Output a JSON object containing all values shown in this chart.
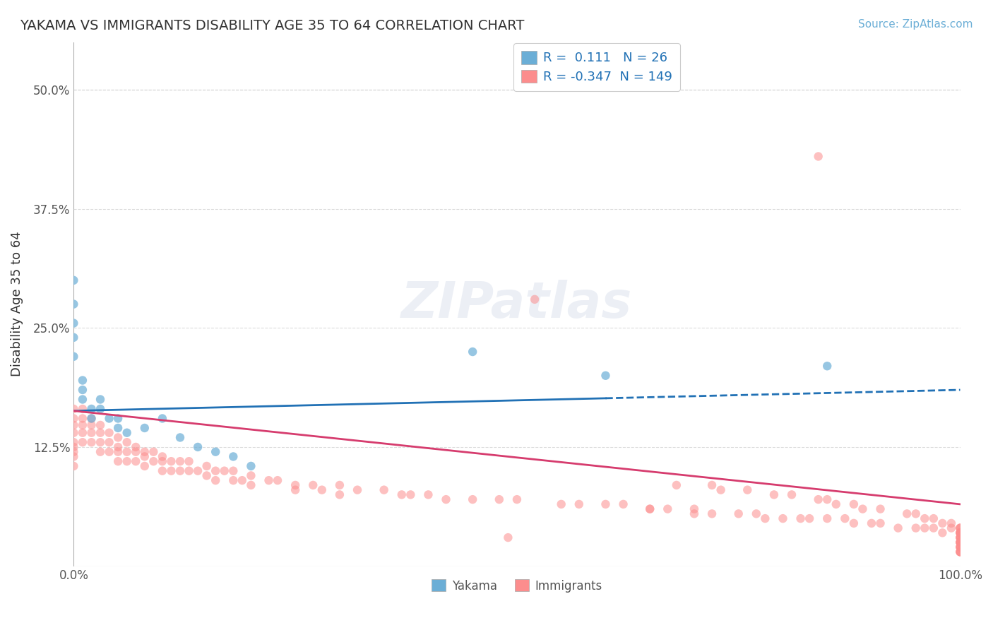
{
  "title": "YAKAMA VS IMMIGRANTS DISABILITY AGE 35 TO 64 CORRELATION CHART",
  "source_text": "Source: ZipAtlas.com",
  "xlabel": "",
  "ylabel": "Disability Age 35 to 64",
  "xlim": [
    0.0,
    1.0
  ],
  "ylim": [
    0.0,
    0.55
  ],
  "x_tick_labels": [
    "0.0%",
    "100.0%"
  ],
  "y_tick_labels": [
    "12.5%",
    "25.0%",
    "37.5%",
    "50.0%"
  ],
  "y_tick_values": [
    0.125,
    0.25,
    0.375,
    0.5
  ],
  "background_color": "#ffffff",
  "watermark_text": "ZIPatlas",
  "legend": {
    "yakama_color": "#6baed6",
    "immigrants_color": "#fc8d8d",
    "yakama_R": "0.111",
    "yakama_N": "26",
    "immigrants_R": "-0.347",
    "immigrants_N": "149"
  },
  "yakama_scatter": {
    "color": "#6baed6",
    "alpha": 0.7,
    "size": 80,
    "x": [
      0.0,
      0.0,
      0.0,
      0.0,
      0.0,
      0.01,
      0.01,
      0.01,
      0.02,
      0.02,
      0.03,
      0.03,
      0.04,
      0.05,
      0.05,
      0.06,
      0.08,
      0.1,
      0.12,
      0.14,
      0.16,
      0.18,
      0.2,
      0.45,
      0.6,
      0.85
    ],
    "y": [
      0.3,
      0.275,
      0.255,
      0.24,
      0.22,
      0.195,
      0.185,
      0.175,
      0.165,
      0.155,
      0.175,
      0.165,
      0.155,
      0.155,
      0.145,
      0.14,
      0.145,
      0.155,
      0.135,
      0.125,
      0.12,
      0.115,
      0.105,
      0.225,
      0.2,
      0.21
    ]
  },
  "immigrants_scatter": {
    "color": "#fc8d8d",
    "alpha": 0.55,
    "size": 80,
    "x": [
      0.0,
      0.0,
      0.0,
      0.0,
      0.0,
      0.0,
      0.0,
      0.0,
      0.0,
      0.01,
      0.01,
      0.01,
      0.01,
      0.01,
      0.02,
      0.02,
      0.02,
      0.02,
      0.03,
      0.03,
      0.03,
      0.03,
      0.04,
      0.04,
      0.04,
      0.05,
      0.05,
      0.05,
      0.05,
      0.06,
      0.06,
      0.06,
      0.07,
      0.07,
      0.07,
      0.08,
      0.08,
      0.08,
      0.09,
      0.09,
      0.1,
      0.1,
      0.1,
      0.11,
      0.11,
      0.12,
      0.12,
      0.13,
      0.13,
      0.14,
      0.15,
      0.15,
      0.16,
      0.16,
      0.17,
      0.18,
      0.18,
      0.19,
      0.2,
      0.2,
      0.22,
      0.23,
      0.25,
      0.25,
      0.27,
      0.28,
      0.3,
      0.3,
      0.32,
      0.35,
      0.37,
      0.38,
      0.4,
      0.42,
      0.45,
      0.48,
      0.5,
      0.55,
      0.57,
      0.6,
      0.62,
      0.65,
      0.65,
      0.67,
      0.7,
      0.7,
      0.72,
      0.75,
      0.77,
      0.78,
      0.8,
      0.82,
      0.83,
      0.85,
      0.87,
      0.88,
      0.9,
      0.91,
      0.93,
      0.95,
      0.96,
      0.97,
      0.98,
      1.0,
      0.68,
      0.72,
      0.73,
      0.76,
      0.79,
      0.81,
      0.84,
      0.85,
      0.86,
      0.88,
      0.89,
      0.91,
      0.94,
      0.95,
      0.96,
      0.97,
      0.98,
      0.99,
      0.99,
      1.0,
      1.0,
      1.0,
      1.0,
      1.0,
      1.0,
      1.0,
      1.0,
      1.0,
      1.0,
      1.0,
      1.0,
      1.0,
      1.0,
      1.0,
      1.0,
      1.0,
      1.0,
      1.0,
      1.0,
      1.0,
      1.0,
      1.0,
      1.0,
      0.52,
      0.84,
      0.49
    ],
    "y": [
      0.165,
      0.155,
      0.148,
      0.14,
      0.13,
      0.125,
      0.12,
      0.115,
      0.105,
      0.165,
      0.155,
      0.148,
      0.14,
      0.13,
      0.155,
      0.148,
      0.14,
      0.13,
      0.148,
      0.14,
      0.13,
      0.12,
      0.14,
      0.13,
      0.12,
      0.135,
      0.125,
      0.12,
      0.11,
      0.13,
      0.12,
      0.11,
      0.125,
      0.12,
      0.11,
      0.12,
      0.115,
      0.105,
      0.12,
      0.11,
      0.115,
      0.11,
      0.1,
      0.11,
      0.1,
      0.11,
      0.1,
      0.11,
      0.1,
      0.1,
      0.105,
      0.095,
      0.1,
      0.09,
      0.1,
      0.1,
      0.09,
      0.09,
      0.095,
      0.085,
      0.09,
      0.09,
      0.085,
      0.08,
      0.085,
      0.08,
      0.085,
      0.075,
      0.08,
      0.08,
      0.075,
      0.075,
      0.075,
      0.07,
      0.07,
      0.07,
      0.07,
      0.065,
      0.065,
      0.065,
      0.065,
      0.06,
      0.06,
      0.06,
      0.06,
      0.055,
      0.055,
      0.055,
      0.055,
      0.05,
      0.05,
      0.05,
      0.05,
      0.05,
      0.05,
      0.045,
      0.045,
      0.045,
      0.04,
      0.04,
      0.04,
      0.04,
      0.035,
      0.035,
      0.085,
      0.085,
      0.08,
      0.08,
      0.075,
      0.075,
      0.07,
      0.07,
      0.065,
      0.065,
      0.06,
      0.06,
      0.055,
      0.055,
      0.05,
      0.05,
      0.045,
      0.045,
      0.04,
      0.04,
      0.04,
      0.04,
      0.035,
      0.035,
      0.035,
      0.035,
      0.03,
      0.03,
      0.03,
      0.03,
      0.025,
      0.025,
      0.025,
      0.025,
      0.025,
      0.02,
      0.02,
      0.02,
      0.02,
      0.015,
      0.015,
      0.015,
      0.015,
      0.28,
      0.43,
      0.03
    ]
  },
  "yakama_trend": {
    "x_start": 0.0,
    "x_end": 1.0,
    "y_start": 0.163,
    "y_end": 0.185,
    "color": "#2171b5",
    "linewidth": 2.0,
    "solid_part_end": 0.6,
    "dashed_part_start": 0.6
  },
  "immigrants_trend": {
    "x_start": 0.0,
    "x_end": 1.0,
    "y_start": 0.163,
    "y_end": 0.065,
    "color": "#d63c6e",
    "linewidth": 2.0
  },
  "grid_color": "#cccccc",
  "grid_alpha": 0.7,
  "grid_linestyle": "--"
}
